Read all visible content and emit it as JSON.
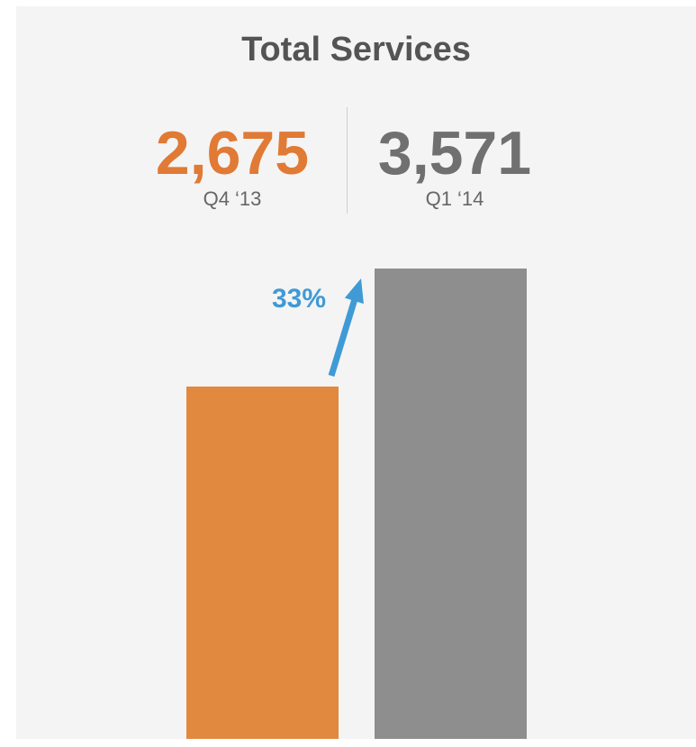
{
  "title": "Total Services",
  "kpis": [
    {
      "value": "2,675",
      "label": "Q4 ‘13",
      "color": "#e07a35"
    },
    {
      "value": "3,571",
      "label": "Q1 ‘14",
      "color": "#707070"
    }
  ],
  "growth": {
    "label": "33%",
    "color": "#3f9ad5"
  },
  "colors": {
    "background": "#f4f4f4",
    "bar_q4": "#e1893f",
    "bar_q1": "#8e8e8e"
  },
  "chart_data": {
    "type": "bar",
    "title": "Total Services",
    "categories": [
      "Q4 ‘13",
      "Q1 ‘14"
    ],
    "values": [
      2675,
      3571
    ],
    "colors": [
      "#e1893f",
      "#8e8e8e"
    ],
    "annotations": [
      {
        "text": "33%",
        "kind": "growth-arrow",
        "from": 0,
        "to": 1
      }
    ],
    "grid": false,
    "axes": false
  }
}
